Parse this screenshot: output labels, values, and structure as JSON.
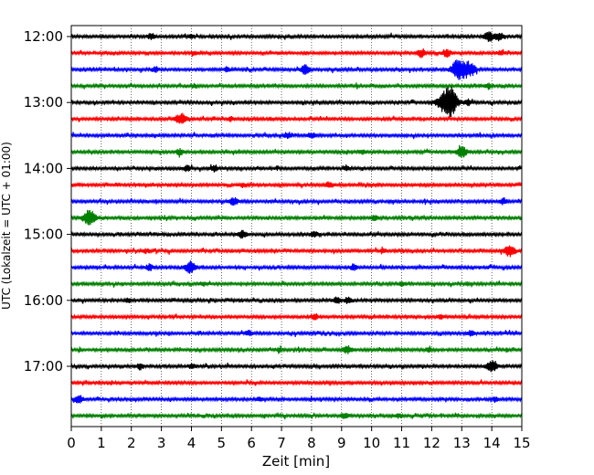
{
  "chart_data": {
    "type": "line",
    "title": "",
    "xlabel": "Zeit  [min]",
    "ylabel": "UTC (Lokalzeit = UTC + 01:00)",
    "xlim": [
      0,
      15
    ],
    "x_ticks": [
      "0",
      "1",
      "2",
      "3",
      "4",
      "5",
      "6",
      "7",
      "8",
      "9",
      "10",
      "11",
      "12",
      "13",
      "14",
      "15"
    ],
    "y_ticks": [
      "12:00",
      "13:00",
      "14:00",
      "15:00",
      "16:00",
      "17:00"
    ],
    "grid": "vertical dotted",
    "trace_interval_minutes": 15,
    "trace_colors": [
      "#000000",
      "#ff0000",
      "#0000ff",
      "#008000"
    ],
    "series": [
      {
        "start": "12:00",
        "color": "#000000",
        "events": [
          [
            2.65,
            3
          ],
          [
            4.0,
            2
          ],
          [
            13.9,
            5
          ],
          [
            14.25,
            4
          ]
        ]
      },
      {
        "start": "12:15",
        "color": "#ff0000",
        "events": [
          [
            4.1,
            2
          ],
          [
            11.65,
            4
          ],
          [
            12.5,
            4
          ],
          [
            14.3,
            2
          ]
        ]
      },
      {
        "start": "12:30",
        "color": "#0000ff",
        "events": [
          [
            2.8,
            3
          ],
          [
            5.2,
            2
          ],
          [
            7.8,
            5
          ],
          [
            12.8,
            6
          ],
          [
            13.0,
            9
          ],
          [
            13.3,
            6
          ]
        ]
      },
      {
        "start": "12:45",
        "color": "#008000",
        "events": [
          [
            4.1,
            2
          ],
          [
            13.9,
            3
          ]
        ]
      },
      {
        "start": "13:00",
        "color": "#000000",
        "events": [
          [
            12.5,
            13
          ],
          [
            12.65,
            7
          ],
          [
            13.2,
            3
          ]
        ]
      },
      {
        "start": "13:15",
        "color": "#ff0000",
        "events": [
          [
            3.65,
            6
          ],
          [
            5.3,
            2
          ]
        ]
      },
      {
        "start": "13:30",
        "color": "#0000ff",
        "events": [
          [
            7.2,
            3
          ],
          [
            8.0,
            3
          ]
        ]
      },
      {
        "start": "13:45",
        "color": "#008000",
        "events": [
          [
            3.6,
            3
          ],
          [
            9.7,
            2
          ],
          [
            13.0,
            6
          ]
        ]
      },
      {
        "start": "14:00",
        "color": "#000000",
        "events": [
          [
            3.85,
            3
          ],
          [
            4.75,
            3
          ],
          [
            9.2,
            2
          ]
        ]
      },
      {
        "start": "14:15",
        "color": "#ff0000",
        "events": [
          [
            5.7,
            2
          ],
          [
            8.6,
            3
          ]
        ]
      },
      {
        "start": "14:30",
        "color": "#0000ff",
        "events": [
          [
            5.4,
            4
          ],
          [
            14.4,
            3
          ]
        ]
      },
      {
        "start": "14:45",
        "color": "#008000",
        "events": [
          [
            0.6,
            8
          ],
          [
            10.1,
            3
          ]
        ]
      },
      {
        "start": "15:00",
        "color": "#000000",
        "events": [
          [
            5.7,
            4
          ],
          [
            8.1,
            3
          ]
        ]
      },
      {
        "start": "15:15",
        "color": "#ff0000",
        "events": [
          [
            2.5,
            2
          ],
          [
            10.4,
            2
          ],
          [
            14.6,
            6
          ]
        ]
      },
      {
        "start": "15:30",
        "color": "#0000ff",
        "events": [
          [
            2.6,
            3
          ],
          [
            3.95,
            6
          ],
          [
            9.4,
            3
          ]
        ]
      },
      {
        "start": "15:45",
        "color": "#008000",
        "events": [
          [
            4.4,
            2
          ],
          [
            11.0,
            2
          ]
        ]
      },
      {
        "start": "16:00",
        "color": "#000000",
        "events": [
          [
            1.9,
            2
          ],
          [
            8.85,
            3
          ],
          [
            9.2,
            3
          ]
        ]
      },
      {
        "start": "16:15",
        "color": "#ff0000",
        "events": [
          [
            8.1,
            3
          ],
          [
            12.3,
            2
          ]
        ]
      },
      {
        "start": "16:30",
        "color": "#0000ff",
        "events": [
          [
            5.9,
            3
          ],
          [
            13.3,
            3
          ]
        ]
      },
      {
        "start": "16:45",
        "color": "#008000",
        "events": [
          [
            6.9,
            2
          ],
          [
            9.2,
            4
          ],
          [
            11.9,
            2
          ]
        ]
      },
      {
        "start": "17:00",
        "color": "#000000",
        "events": [
          [
            2.3,
            3
          ],
          [
            4.0,
            3
          ],
          [
            14.0,
            6
          ]
        ]
      },
      {
        "start": "17:15",
        "color": "#ff0000",
        "events": []
      },
      {
        "start": "17:30",
        "color": "#0000ff",
        "events": [
          [
            0.25,
            4
          ],
          [
            6.3,
            2
          ],
          [
            14.1,
            2
          ]
        ]
      },
      {
        "start": "17:45",
        "color": "#008000",
        "events": [
          [
            9.1,
            3
          ],
          [
            10.9,
            2
          ]
        ]
      }
    ]
  }
}
